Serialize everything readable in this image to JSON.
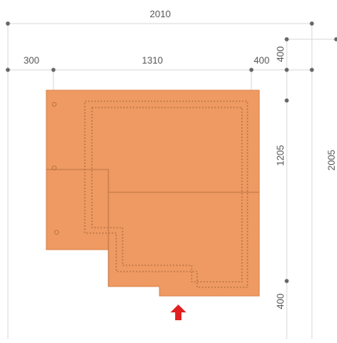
{
  "plan": {
    "dimensions": {
      "overall_width": "2010",
      "overall_depth": "2005",
      "left_setback": "300",
      "building_width": "1310",
      "right_setback": "400",
      "top_setback": "400",
      "building_depth": "1205",
      "bottom_setback": "400"
    },
    "colors": {
      "building_fill": "#EE9A62",
      "building_edge": "#D9824A",
      "entrance_arrow": "#E02020",
      "dimension_line": "#D8D8D8",
      "dimension_dot": "#666666"
    },
    "icons": {
      "entrance": "entrance-arrow-icon"
    }
  }
}
